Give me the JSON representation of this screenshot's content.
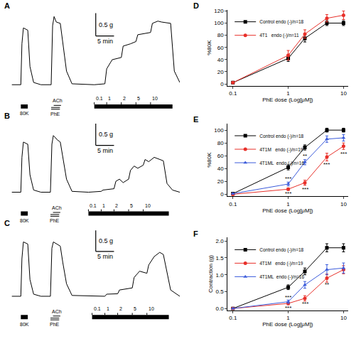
{
  "chart_data": [
    {
      "type": "line",
      "panel": "A",
      "color": "#000000",
      "tick_labels": false,
      "x": [
        0,
        2.5,
        2.8,
        3.2,
        4.4,
        5,
        6,
        8,
        10.8,
        11.2,
        11.6,
        12.2,
        13.3,
        14,
        15,
        16.5,
        22.6,
        25.5,
        26,
        27.5,
        30,
        30.5,
        32.5,
        34,
        34.5,
        38,
        38.5,
        40,
        41,
        43.5,
        44.5,
        46
      ],
      "values": [
        0,
        0,
        0.9,
        1.25,
        1.2,
        0.4,
        0.05,
        0,
        0,
        1.3,
        1.5,
        1.38,
        1.35,
        0.9,
        0.3,
        0.02,
        0,
        0.02,
        0.35,
        0.55,
        0.6,
        0.85,
        0.9,
        0.95,
        1.1,
        1.15,
        1.35,
        1.4,
        1.38,
        1.35,
        0.3,
        0.05
      ],
      "xlim": [
        0,
        46
      ],
      "ylim": [
        -0.25,
        1.65
      ],
      "scale_bar": {
        "x": 5,
        "x_label": "5 min",
        "y": 0.5,
        "y_label": "0.5 g"
      },
      "stimuli": [
        {
          "label": "80K",
          "start": 2.5,
          "end": 4.4
        },
        {
          "label": "ACh",
          "start": 11.5,
          "end": 13.5
        },
        {
          "label": "PhE",
          "start": 10.8,
          "end": 13.2
        }
      ],
      "doses": {
        "start": 22.6,
        "end": 44,
        "labels": [
          "0.1",
          "1",
          "2",
          "5",
          "10"
        ],
        "at": [
          22.6,
          26,
          30,
          34,
          38
        ]
      }
    },
    {
      "type": "line",
      "panel": "B",
      "color": "#000000",
      "tick_labels": false,
      "x": [
        0,
        2.5,
        2.8,
        3.2,
        4.4,
        5,
        6,
        8,
        10.6,
        11,
        11.4,
        12.5,
        13.3,
        14,
        15,
        16.5,
        21,
        24.5,
        25,
        28,
        28.5,
        29.5,
        30.5,
        32,
        32.5,
        33.5,
        34.5,
        36,
        36.5,
        37.5,
        39,
        41.5,
        42.5,
        44,
        46
      ],
      "values": [
        0,
        0,
        0.8,
        1.15,
        1.1,
        0.4,
        0.05,
        0,
        0,
        1.1,
        1.3,
        1.2,
        1.15,
        0.8,
        0.3,
        0.02,
        0,
        0.02,
        0.05,
        0.08,
        0.25,
        0.3,
        0.22,
        0.3,
        0.5,
        0.6,
        0.55,
        0.62,
        0.75,
        0.7,
        0.8,
        0.72,
        0.2,
        0.05,
        0
      ],
      "xlim": [
        0,
        46
      ],
      "ylim": [
        -0.25,
        1.65
      ],
      "scale_bar": {
        "x": 5,
        "x_label": "5 min",
        "y": 0.5,
        "y_label": "0.5 g"
      },
      "stimuli": [
        {
          "label": "80K",
          "start": 2.5,
          "end": 4.4
        },
        {
          "label": "ACh",
          "start": 11.3,
          "end": 13.3
        },
        {
          "label": "PhE",
          "start": 10.6,
          "end": 13
        }
      ],
      "doses": {
        "start": 21,
        "end": 43,
        "labels": [
          "0.1",
          "1",
          "2",
          "5",
          "10"
        ],
        "at": [
          21,
          24.5,
          28,
          32,
          36
        ]
      }
    },
    {
      "type": "line",
      "panel": "C",
      "color": "#000000",
      "tick_labels": false,
      "x": [
        0,
        2.5,
        2.8,
        3.2,
        4.4,
        5,
        6,
        8,
        10.6,
        11,
        11.4,
        12.5,
        13.3,
        14,
        15,
        16.5,
        22,
        25.5,
        26,
        29,
        29.5,
        33,
        33.5,
        35,
        37,
        37.5,
        39,
        40.5,
        41.5,
        42.5,
        43.5,
        46
      ],
      "values": [
        0,
        0,
        0.9,
        1.3,
        1.25,
        0.4,
        0.05,
        0,
        0,
        1.15,
        1.3,
        1.25,
        1.2,
        0.8,
        0.3,
        0.02,
        0,
        0,
        0.05,
        0.06,
        0.15,
        0.2,
        0.45,
        0.6,
        0.55,
        0.75,
        0.95,
        1.05,
        1.0,
        0.6,
        0.15,
        0
      ],
      "xlim": [
        0,
        46
      ],
      "ylim": [
        -0.25,
        1.65
      ],
      "scale_bar": {
        "x": 5,
        "x_label": "5 min",
        "y": 0.5,
        "y_label": "0.5 g"
      },
      "stimuli": [
        {
          "label": "80K",
          "start": 2.5,
          "end": 4.4
        },
        {
          "label": "ACh",
          "start": 11.3,
          "end": 13.3
        },
        {
          "label": "PhE",
          "start": 10.6,
          "end": 13
        }
      ],
      "doses": {
        "start": 22,
        "end": 43,
        "labels": [
          "0.1",
          "1",
          "2",
          "5",
          "10"
        ],
        "at": [
          22,
          25.5,
          29,
          33,
          37
        ]
      }
    },
    {
      "type": "line",
      "panel": "D",
      "log": "x",
      "grid": false,
      "legend": "upper left",
      "x_label": "PhE dose (Log[μM])",
      "y_label": "%80K",
      "x": [
        0.1,
        1,
        2,
        5,
        10
      ],
      "xlim": [
        0.08,
        12
      ],
      "ylim": [
        -3,
        122
      ],
      "xticks": [
        0.1,
        1,
        10
      ],
      "yticks": [
        0,
        20,
        40,
        60,
        80,
        100,
        120
      ],
      "series": [
        {
          "name": "Control endo (-)/n=18",
          "color": "#000000",
          "marker": "square",
          "values": [
            2,
            42,
            75,
            100,
            100
          ],
          "error": [
            0.5,
            5,
            6,
            4,
            4
          ]
        },
        {
          "name": "4T1   endo (-)/n=11",
          "color": "#e8302a",
          "marker": "circle",
          "values": [
            2,
            47,
            82,
            108,
            113
          ],
          "error": [
            0.5,
            8,
            7,
            6,
            7
          ]
        }
      ],
      "annotations": []
    },
    {
      "type": "line",
      "panel": "E",
      "log": "x",
      "grid": false,
      "legend": "upper left",
      "x_label": "PhE dose (Log[μM])",
      "y_label": "%80K",
      "x": [
        0.1,
        1,
        2,
        5,
        10
      ],
      "xlim": [
        0.08,
        12
      ],
      "ylim": [
        -3,
        110
      ],
      "xticks": [
        0.1,
        1,
        10
      ],
      "yticks": [
        0,
        20,
        40,
        60,
        80,
        100
      ],
      "series": [
        {
          "name": "Control endo (-)/n=18",
          "color": "#000000",
          "marker": "square",
          "values": [
            1,
            42,
            73,
            100,
            100
          ],
          "error": [
            0.5,
            4,
            4,
            3,
            3
          ]
        },
        {
          "name": "4T1M   endo (-)/n=19",
          "color": "#e8302a",
          "marker": "circle",
          "values": [
            0,
            8,
            18,
            58,
            75
          ],
          "error": [
            0.5,
            2,
            4,
            6,
            5
          ]
        },
        {
          "name": "4T1ML  endo (-)/n=16",
          "color": "#3b5bdb",
          "marker": "triangle-up",
          "values": [
            1,
            16,
            50,
            86,
            88
          ],
          "error": [
            0.5,
            3,
            4,
            5,
            5
          ]
        }
      ],
      "annotations": [
        {
          "x": 1,
          "y": 24,
          "text": "***"
        },
        {
          "x": 1,
          "y": 1,
          "text": "***"
        },
        {
          "x": 2,
          "y": 60,
          "text": "**"
        },
        {
          "x": 2,
          "y": 8,
          "text": "***"
        },
        {
          "x": 5,
          "y": 46,
          "text": "***"
        },
        {
          "x": 10,
          "y": 63,
          "text": "***"
        }
      ]
    },
    {
      "type": "line",
      "panel": "F",
      "log": "x",
      "grid": false,
      "legend": "upper left",
      "x_label": "PhE dose (Log[μM])",
      "y_label": "Contraction (g)",
      "x": [
        0.1,
        1,
        2,
        5,
        10
      ],
      "xlim": [
        0.08,
        12
      ],
      "ylim": [
        -0.05,
        2.1
      ],
      "xticks": [
        0.1,
        1,
        10
      ],
      "yticks": [
        {
          "value": 0,
          "label": "0.0"
        },
        {
          "value": 0.5,
          "label": "0.5"
        },
        {
          "value": 1,
          "label": "1.0"
        },
        {
          "value": 1.5,
          "label": "1.5"
        },
        {
          "value": 2,
          "label": "2.0"
        }
      ],
      "series": [
        {
          "name": "Control endo (-)/n=18",
          "color": "#000000",
          "marker": "square",
          "values": [
            0,
            0.63,
            1.1,
            1.8,
            1.8
          ],
          "error": [
            0,
            0.07,
            0.1,
            0.12,
            0.12
          ]
        },
        {
          "name": "4T1M   endo (-)/n=19",
          "color": "#e8302a",
          "marker": "circle",
          "values": [
            0,
            0.15,
            0.3,
            0.9,
            1.15
          ],
          "error": [
            0,
            0.04,
            0.08,
            0.12,
            0.12
          ]
        },
        {
          "name": "4T1ML  endo (-)/n=16",
          "color": "#3b5bdb",
          "marker": "triangle-up",
          "values": [
            0,
            0.2,
            0.7,
            1.15,
            1.2
          ],
          "error": [
            0,
            0.05,
            0.1,
            0.15,
            0.15
          ]
        }
      ],
      "annotations": [
        {
          "x": 1,
          "y": 0.32,
          "text": "***"
        },
        {
          "x": 1,
          "y": 0.02,
          "text": "***"
        },
        {
          "x": 2,
          "y": 0.13,
          "text": "***"
        },
        {
          "x": 5,
          "y": 0.7,
          "text": "**"
        }
      ]
    }
  ]
}
